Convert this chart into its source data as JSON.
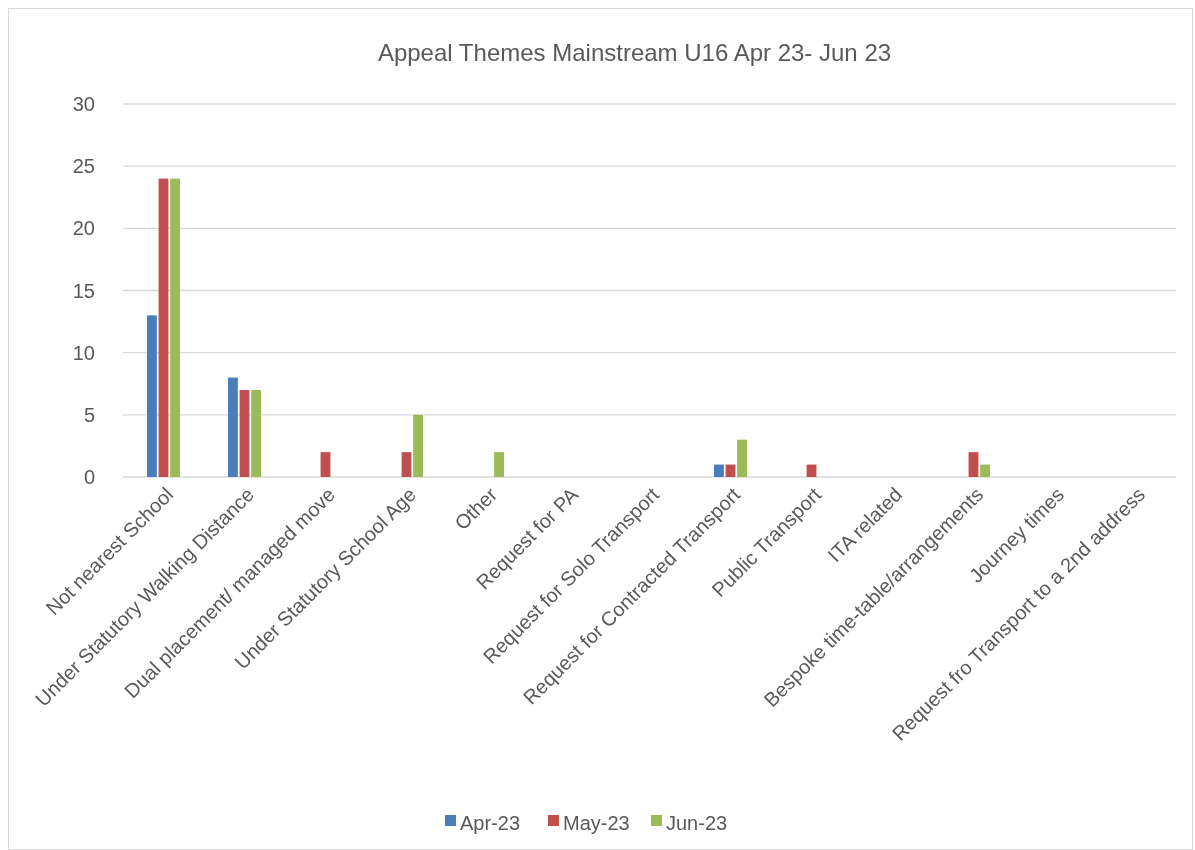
{
  "chart_data": {
    "type": "bar",
    "title": "Appeal Themes Mainstream U16  Apr 23- Jun 23",
    "categories": [
      "Not nearest School",
      "Under Statutory Walking Distance",
      "Dual placement/ managed move",
      "Under Statutory School Age",
      "Other",
      "Request for PA",
      "Request for Solo Transport",
      "Request for Contracted Transport",
      "Public Transport",
      "ITA related",
      "Bespoke time-table/arrangements",
      "Journey times",
      "Request fro Transport to a 2nd address"
    ],
    "series": [
      {
        "name": "Apr-23",
        "color": "#4a7ebb",
        "values": [
          13,
          8,
          0,
          0,
          0,
          0,
          0,
          1,
          0,
          0,
          0,
          0,
          0
        ]
      },
      {
        "name": "May-23",
        "color": "#c0504d",
        "values": [
          24,
          7,
          2,
          2,
          0,
          0,
          0,
          1,
          1,
          0,
          2,
          0,
          0
        ]
      },
      {
        "name": "Jun-23",
        "color": "#9bbb59",
        "values": [
          24,
          7,
          0,
          5,
          2,
          0,
          0,
          3,
          0,
          0,
          1,
          0,
          0
        ]
      }
    ],
    "ylim": [
      0,
      30
    ],
    "yticks": [
      0,
      5,
      10,
      15,
      20,
      25,
      30
    ],
    "grid": "y",
    "legend": "bottom"
  }
}
